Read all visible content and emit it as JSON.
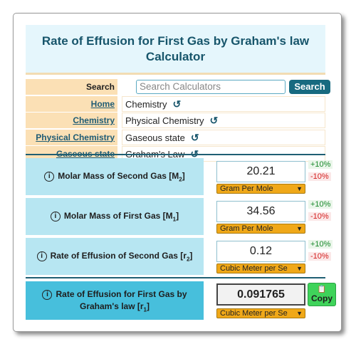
{
  "title": "Rate of Effusion for First Gas by Graham's law Calculator",
  "search": {
    "label": "Search",
    "placeholder": "Search Calculators",
    "button": "Search"
  },
  "breadcrumbs": [
    {
      "label": "Home",
      "value": "Chemistry"
    },
    {
      "label": "Chemistry",
      "value": "Physical Chemistry"
    },
    {
      "label": "Physical Chemistry",
      "value": "Gaseous state"
    },
    {
      "label": "Gaseous state",
      "value": "Graham's Law"
    }
  ],
  "inputs": [
    {
      "label": "Molar Mass of Second Gas [M",
      "sub": "2",
      "close": "]",
      "value": "20.21",
      "unit": "Gram Per Mole",
      "plus": "+10%",
      "minus": "-10%"
    },
    {
      "label": "Molar Mass of First Gas [M",
      "sub": "1",
      "close": "]",
      "value": "34.56",
      "unit": "Gram Per Mole",
      "plus": "+10%",
      "minus": "-10%"
    },
    {
      "label": "Rate of Effusion of Second Gas [r",
      "sub": "2",
      "close": "]",
      "value": "0.12",
      "unit": "Cubic Meter per Se",
      "plus": "+10%",
      "minus": "-10%"
    }
  ],
  "result": {
    "label_line1": "Rate of Effusion for First Gas by",
    "label_line2": "Graham's law [r",
    "sub": "1",
    "close": "]",
    "value": "0.091765",
    "unit": "Cubic Meter per Se",
    "copy": "Copy"
  },
  "icons": {
    "info": "info-circle-icon",
    "reset": "reset-arrow-icon",
    "copy": "clipboard-icon",
    "dropdown": "chevron-down-icon"
  },
  "colors": {
    "accent": "#17556b",
    "input_bg": "#b7e6f2",
    "result_bg": "#47bfdc",
    "unit_bg": "#f0a818",
    "copy_bg": "#3fd35a"
  }
}
